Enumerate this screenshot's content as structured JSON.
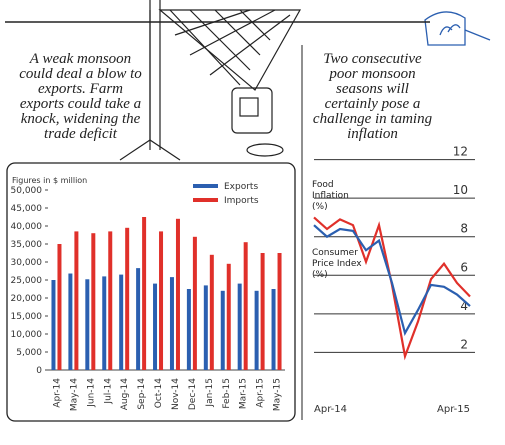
{
  "chart_data": [
    {
      "type": "bar",
      "caption": "A weak monsoon could deal a blow to exports. Farm exports could take a knock, widening the trade deficit",
      "y_label": "Figures in $ million",
      "categories": [
        "Apr-14",
        "May-14",
        "Jun-14",
        "Jul-14",
        "Aug-14",
        "Sep-14",
        "Oct-14",
        "Nov-14",
        "Dec-14",
        "Jan-15",
        "Feb-15",
        "Mar-15",
        "Apr-15",
        "May-15"
      ],
      "series": [
        {
          "name": "Exports",
          "color": "#2b5fb0",
          "values": [
            25000,
            26800,
            25200,
            26000,
            26500,
            28300,
            24000,
            25800,
            22500,
            23500,
            22000,
            24000,
            22000,
            22500
          ]
        },
        {
          "name": "Imports",
          "color": "#e0302a",
          "values": [
            35000,
            38500,
            38000,
            38500,
            39500,
            42500,
            38500,
            42000,
            37000,
            32000,
            29500,
            35500,
            32500,
            32500
          ]
        }
      ],
      "ylim": [
        0,
        50000
      ],
      "yticks": [
        0,
        {
          "value": 5000,
          "label": "5,000"
        },
        {
          "value": 10000,
          "label": "10,000"
        },
        {
          "value": 15000,
          "label": "15,000"
        },
        {
          "value": 20000,
          "label": "20,000"
        },
        {
          "value": 25000,
          "label": "25,000"
        },
        {
          "value": 30000,
          "label": "30,000"
        },
        {
          "value": 35000,
          "label": "35,000"
        },
        {
          "value": 40000,
          "label": "40,000"
        },
        {
          "value": 45000,
          "label": "45,000"
        },
        {
          "value": 50000,
          "label": "50,000"
        }
      ],
      "legend": "top-right"
    },
    {
      "type": "line",
      "caption": "Two consecutive poor monsoon seasons will certainly pose a challenge in taming inflation",
      "categories": [
        "Apr-14",
        null,
        null,
        null,
        null,
        null,
        null,
        null,
        null,
        null,
        null,
        null,
        "Apr-15"
      ],
      "series": [
        {
          "name": "Food Inflation (%)",
          "color": "#e0302a",
          "values": [
            9.0,
            8.4,
            8.9,
            8.6,
            6.7,
            8.6,
            5.5,
            1.8,
            3.6,
            5.8,
            6.6,
            5.6,
            4.9
          ]
        },
        {
          "name": "Consumer Price Index (%)",
          "color": "#2b5fb0",
          "values": [
            8.6,
            8.0,
            8.4,
            8.3,
            7.3,
            7.8,
            5.6,
            3.0,
            4.2,
            5.5,
            5.4,
            5.0,
            4.4
          ]
        }
      ],
      "ylim": [
        1.5,
        12.5
      ],
      "yticks": [
        2,
        4,
        6,
        8,
        10,
        12
      ],
      "grid": true
    }
  ]
}
